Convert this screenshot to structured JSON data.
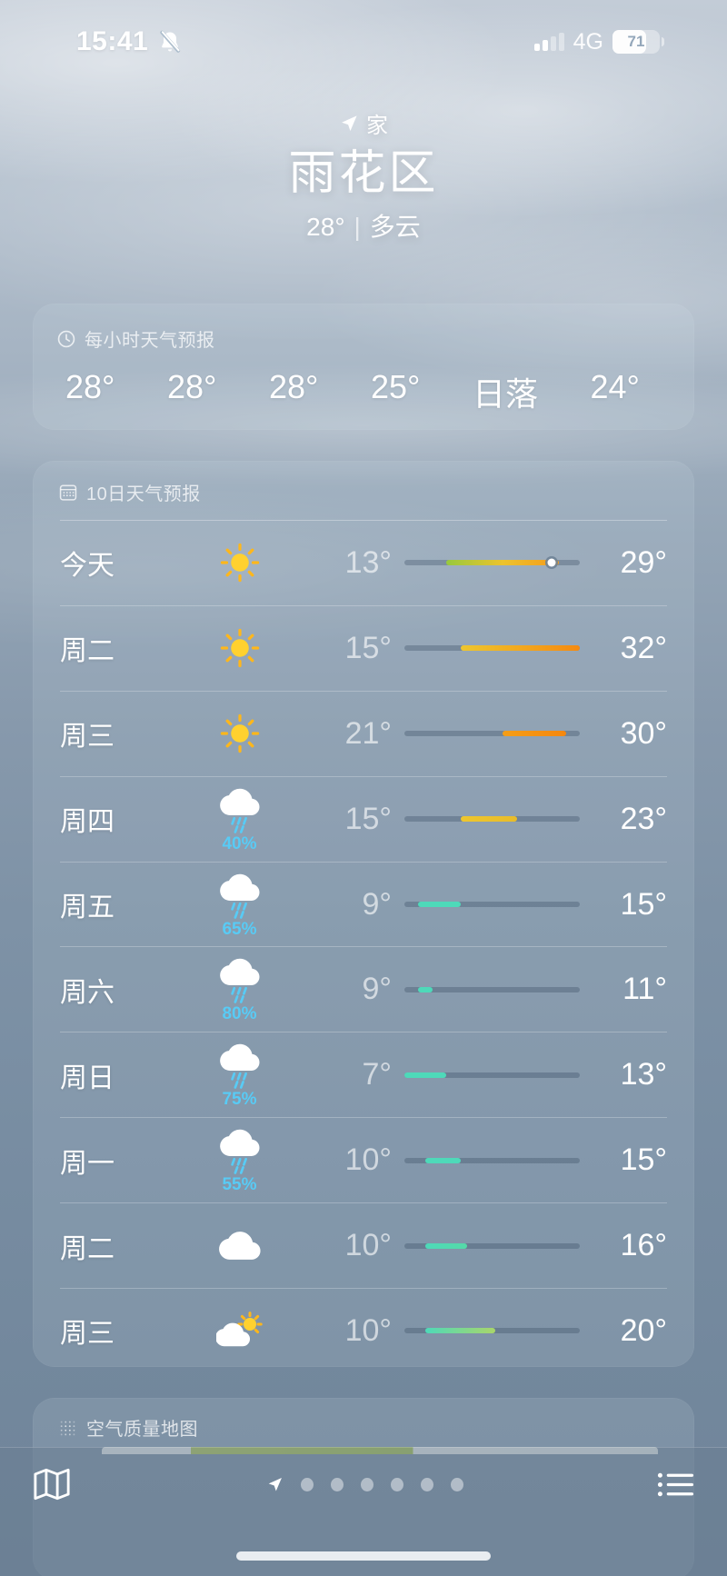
{
  "status_bar": {
    "time": "15:41",
    "network": "4G",
    "battery": "71"
  },
  "header": {
    "my_location_label": "家",
    "location": "雨花区",
    "temperature": "28°",
    "separator": "|",
    "condition": "多云"
  },
  "hourly_card": {
    "title": "每小时天气预报",
    "items": [
      "28°",
      "28°",
      "28°",
      "25°",
      "日落",
      "24°"
    ]
  },
  "forecast_card": {
    "title": "10日天气预报",
    "temp_scale": {
      "min": 7,
      "max": 32
    },
    "rows": [
      {
        "day": "今天",
        "icon": "sunny",
        "low": 13,
        "high": 29,
        "low_label": "13°",
        "high_label": "29°",
        "bar_colors": [
          "#97c93d",
          "#ecc32e",
          "#f59b1b"
        ],
        "current_temp": 28
      },
      {
        "day": "周二",
        "icon": "sunny",
        "low": 15,
        "high": 32,
        "low_label": "15°",
        "high_label": "32°",
        "bar_colors": [
          "#eec62e",
          "#f58a10"
        ]
      },
      {
        "day": "周三",
        "icon": "sunny",
        "low": 21,
        "high": 30,
        "low_label": "21°",
        "high_label": "30°",
        "bar_colors": [
          "#f59e17",
          "#f5870e"
        ]
      },
      {
        "day": "周四",
        "icon": "rainy",
        "precip": "40%",
        "low": 15,
        "high": 23,
        "low_label": "15°",
        "high_label": "23°",
        "bar_colors": [
          "#eec62e",
          "#e8bc2a"
        ]
      },
      {
        "day": "周五",
        "icon": "rainy",
        "precip": "65%",
        "low": 9,
        "high": 15,
        "low_label": "9°",
        "high_label": "15°",
        "bar_colors": [
          "#4ed9b9",
          "#4ed9b9"
        ]
      },
      {
        "day": "周六",
        "icon": "rainy",
        "precip": "80%",
        "low": 9,
        "high": 11,
        "low_label": "9°",
        "high_label": "11°",
        "bar_colors": [
          "#4ed9b9",
          "#4ed9b9"
        ]
      },
      {
        "day": "周日",
        "icon": "rainy",
        "precip": "75%",
        "low": 7,
        "high": 13,
        "low_label": "7°",
        "high_label": "13°",
        "bar_colors": [
          "#4ed9b9",
          "#4ed9b9"
        ]
      },
      {
        "day": "周一",
        "icon": "rainy",
        "precip": "55%",
        "low": 10,
        "high": 15,
        "low_label": "10°",
        "high_label": "15°",
        "bar_colors": [
          "#4ed9b9",
          "#4ed9b9"
        ]
      },
      {
        "day": "周二",
        "icon": "cloudy",
        "low": 10,
        "high": 16,
        "low_label": "10°",
        "high_label": "16°",
        "bar_colors": [
          "#4ed9b9",
          "#55d9a8"
        ]
      },
      {
        "day": "周三",
        "icon": "partly-sunny",
        "low": 10,
        "high": 20,
        "low_label": "10°",
        "high_label": "20°",
        "bar_colors": [
          "#4ed9b9",
          "#a9d66a"
        ]
      }
    ]
  },
  "air_quality_card": {
    "title": "空气质量地图"
  },
  "tab_bar": {
    "page_count": 6
  }
}
